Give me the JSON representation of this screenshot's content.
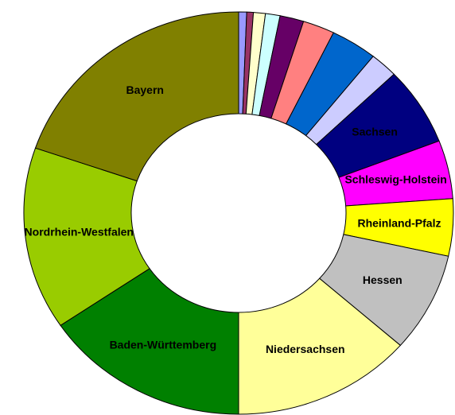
{
  "chart_data": {
    "type": "pie",
    "categories": [
      null,
      null,
      null,
      null,
      null,
      null,
      null,
      null,
      "Sachsen",
      "Schleswig-Holstein",
      "Rheinland-Pfalz",
      "Hessen",
      "Niedersachsen",
      "Baden-Württemberg",
      "Nordrhein-Westfalen",
      "Bayern"
    ],
    "values": [
      0.6,
      0.5,
      0.9,
      1.1,
      1.8,
      2.4,
      3.5,
      2.1,
      6.3,
      4.7,
      4.6,
      8.0,
      13.6,
      15.6,
      14.7,
      19.8
    ],
    "colors": [
      "#9999ff",
      "#993366",
      "#ffffcc",
      "#ccffff",
      "#660066",
      "#ff8080",
      "#0066cc",
      "#ccccff",
      "#000080",
      "#ff00ff",
      "#ffff00",
      "#c0c0c0",
      "#ffff99",
      "#008000",
      "#99cc00",
      "#808000"
    ]
  }
}
